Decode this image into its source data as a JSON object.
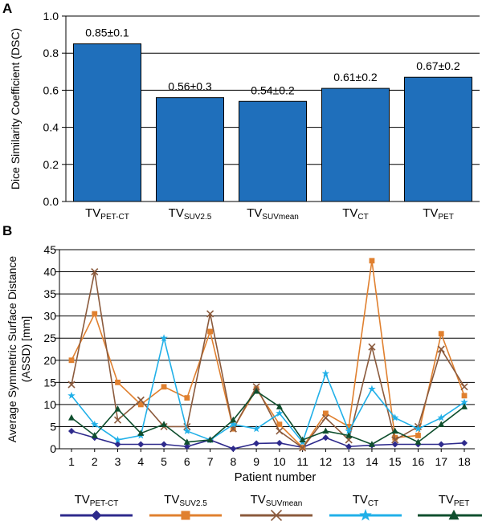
{
  "chart_data": [
    {
      "panel": "A",
      "type": "bar",
      "ylabel": "Dice Similarity Coefficient (DSC)",
      "ylim": [
        0,
        1.0
      ],
      "yticks": [
        "0.0",
        "0.2",
        "0.4",
        "0.6",
        "0.8",
        "1.0"
      ],
      "categories": [
        {
          "base": "TV",
          "sub": "PET-CT"
        },
        {
          "base": "TV",
          "sub": "SUV2.5"
        },
        {
          "base": "TV",
          "sub": "SUVmean"
        },
        {
          "base": "TV",
          "sub": "CT"
        },
        {
          "base": "TV",
          "sub": "PET"
        }
      ],
      "values": [
        0.85,
        0.56,
        0.54,
        0.61,
        0.67
      ],
      "data_labels": [
        "0.85±0.1",
        "0.56±0.3",
        "0.54±0.2",
        "0.61±0.2",
        "0.67±0.2"
      ],
      "bar_color": "#1f6fbb",
      "grid": "horizontal"
    },
    {
      "panel": "B",
      "type": "line",
      "xlabel": "Patient number",
      "ylabel": "Average Symmetric Surface Distance (ASSD) [mm]",
      "ylim": [
        0,
        45
      ],
      "yticks": [
        "0",
        "5",
        "10",
        "15",
        "20",
        "25",
        "30",
        "35",
        "40",
        "45"
      ],
      "x": [
        1,
        2,
        3,
        4,
        5,
        6,
        7,
        8,
        9,
        10,
        11,
        12,
        13,
        14,
        15,
        16,
        17,
        18
      ],
      "grid": "horizontal",
      "legend_position": "bottom",
      "series": [
        {
          "name": {
            "base": "TV",
            "sub": "PET-CT"
          },
          "color": "#2e2a8c",
          "marker": "diamond",
          "values": [
            4.0,
            2.5,
            1.0,
            1.0,
            1.0,
            0.5,
            2.0,
            0.0,
            1.2,
            1.3,
            0.3,
            2.5,
            0.5,
            0.8,
            1.0,
            1.0,
            1.0,
            1.3
          ]
        },
        {
          "name": {
            "base": "TV",
            "sub": "SUV2.5"
          },
          "color": "#e0802f",
          "marker": "square",
          "values": [
            20.0,
            30.5,
            15.0,
            10.0,
            14.0,
            11.5,
            26.5,
            4.5,
            13.5,
            5.5,
            0.3,
            8.0,
            5.0,
            42.5,
            2.5,
            3.0,
            26.0,
            12.0
          ]
        },
        {
          "name": {
            "base": "TV",
            "sub": "SUVmean"
          },
          "color": "#8b5a3c",
          "marker": "x",
          "values": [
            14.5,
            40.0,
            6.5,
            11.0,
            5.0,
            5.0,
            30.5,
            4.5,
            14.0,
            4.0,
            0.2,
            7.0,
            2.0,
            23.0,
            2.0,
            5.0,
            22.5,
            14.0
          ]
        },
        {
          "name": {
            "base": "TV",
            "sub": "CT"
          },
          "color": "#21b0e8",
          "marker": "star",
          "values": [
            12.0,
            5.5,
            2.0,
            3.0,
            25.0,
            4.0,
            2.0,
            5.5,
            4.5,
            8.0,
            1.5,
            17.0,
            4.0,
            13.5,
            7.0,
            4.5,
            7.0,
            10.5
          ]
        },
        {
          "name": {
            "base": "TV",
            "sub": "PET"
          },
          "color": "#0f4f2e",
          "marker": "triangle",
          "values": [
            7.0,
            3.0,
            9.0,
            3.5,
            5.5,
            1.5,
            2.0,
            6.5,
            13.0,
            9.5,
            2.0,
            4.0,
            3.0,
            1.0,
            4.0,
            1.5,
            5.5,
            9.5
          ]
        }
      ]
    }
  ]
}
